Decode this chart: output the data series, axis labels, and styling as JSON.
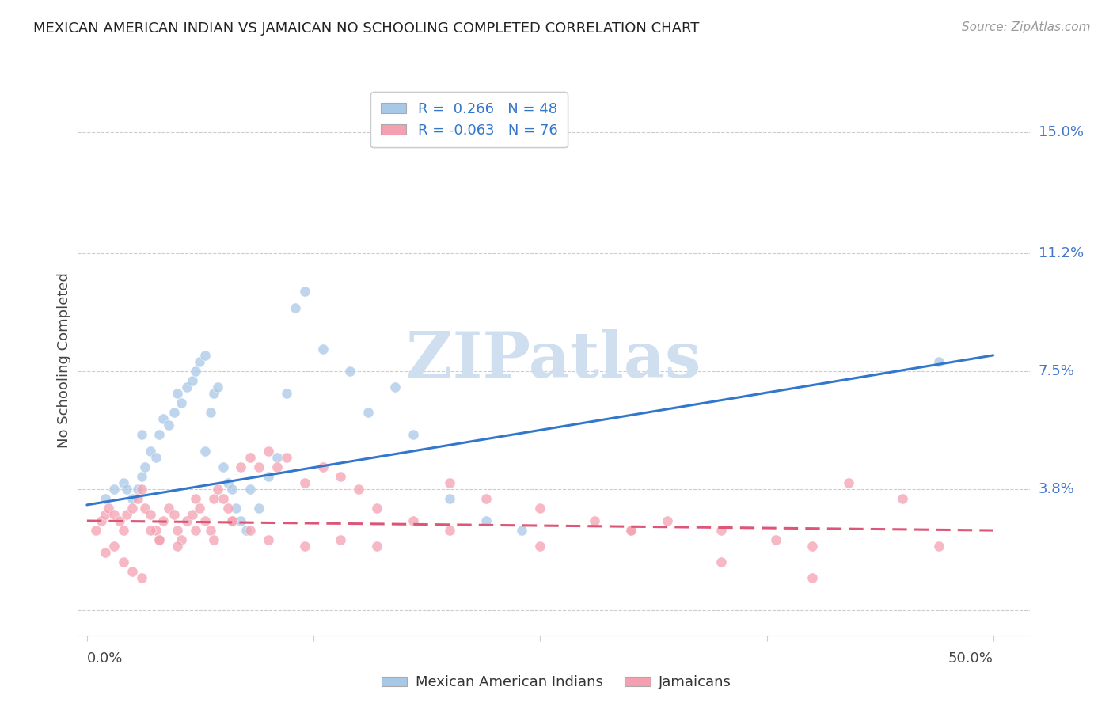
{
  "title": "MEXICAN AMERICAN INDIAN VS JAMAICAN NO SCHOOLING COMPLETED CORRELATION CHART",
  "source": "Source: ZipAtlas.com",
  "ylabel": "No Schooling Completed",
  "ytick_vals": [
    0.0,
    3.8,
    7.5,
    11.2,
    15.0
  ],
  "ytick_labels": [
    "",
    "3.8%",
    "7.5%",
    "11.2%",
    "15.0%"
  ],
  "xlim": [
    -0.5,
    52.0
  ],
  "ylim": [
    -0.8,
    16.5
  ],
  "xtick_vals": [
    0.0,
    12.5,
    25.0,
    37.5,
    50.0
  ],
  "blue_color": "#a8c8e8",
  "pink_color": "#f4a0b0",
  "blue_line_color": "#3377cc",
  "pink_line_color": "#dd5577",
  "watermark_color": "#d0dff0",
  "grid_color": "#cccccc",
  "background_color": "#ffffff",
  "right_label_color": "#4477cc",
  "blue_scatter_x": [
    1.0,
    1.5,
    2.0,
    2.2,
    2.5,
    2.8,
    3.0,
    3.2,
    3.5,
    3.8,
    4.0,
    4.2,
    4.5,
    4.8,
    5.0,
    5.2,
    5.5,
    5.8,
    6.0,
    6.2,
    6.5,
    6.8,
    7.0,
    7.2,
    7.5,
    7.8,
    8.0,
    8.2,
    8.5,
    8.8,
    9.0,
    9.5,
    10.0,
    10.5,
    11.0,
    11.5,
    12.0,
    13.0,
    14.5,
    15.5,
    17.0,
    18.0,
    20.0,
    22.0,
    24.0,
    47.0,
    3.0,
    6.5
  ],
  "blue_scatter_y": [
    3.5,
    3.8,
    4.0,
    3.8,
    3.5,
    3.8,
    4.2,
    4.5,
    5.0,
    4.8,
    5.5,
    6.0,
    5.8,
    6.2,
    6.8,
    6.5,
    7.0,
    7.2,
    7.5,
    7.8,
    8.0,
    6.2,
    6.8,
    7.0,
    4.5,
    4.0,
    3.8,
    3.2,
    2.8,
    2.5,
    3.8,
    3.2,
    4.2,
    4.8,
    6.8,
    9.5,
    10.0,
    8.2,
    7.5,
    6.2,
    7.0,
    5.5,
    3.5,
    2.8,
    2.5,
    7.8,
    5.5,
    5.0
  ],
  "pink_scatter_x": [
    0.5,
    0.8,
    1.0,
    1.2,
    1.5,
    1.8,
    2.0,
    2.2,
    2.5,
    2.8,
    3.0,
    3.2,
    3.5,
    3.8,
    4.0,
    4.2,
    4.5,
    4.8,
    5.0,
    5.2,
    5.5,
    5.8,
    6.0,
    6.2,
    6.5,
    6.8,
    7.0,
    7.2,
    7.5,
    7.8,
    8.0,
    8.5,
    9.0,
    9.5,
    10.0,
    10.5,
    11.0,
    12.0,
    13.0,
    14.0,
    15.0,
    16.0,
    18.0,
    20.0,
    22.0,
    25.0,
    28.0,
    30.0,
    32.0,
    35.0,
    38.0,
    40.0,
    42.0,
    45.0,
    47.0,
    1.0,
    1.5,
    2.0,
    2.5,
    3.0,
    3.5,
    4.0,
    5.0,
    6.0,
    7.0,
    8.0,
    9.0,
    10.0,
    12.0,
    14.0,
    16.0,
    20.0,
    25.0,
    30.0,
    35.0,
    40.0
  ],
  "pink_scatter_y": [
    2.5,
    2.8,
    3.0,
    3.2,
    3.0,
    2.8,
    2.5,
    3.0,
    3.2,
    3.5,
    3.8,
    3.2,
    3.0,
    2.5,
    2.2,
    2.8,
    3.2,
    3.0,
    2.5,
    2.2,
    2.8,
    3.0,
    3.5,
    3.2,
    2.8,
    2.5,
    3.5,
    3.8,
    3.5,
    3.2,
    2.8,
    4.5,
    4.8,
    4.5,
    5.0,
    4.5,
    4.8,
    4.0,
    4.5,
    4.2,
    3.8,
    3.2,
    2.8,
    4.0,
    3.5,
    3.2,
    2.8,
    2.5,
    2.8,
    2.5,
    2.2,
    2.0,
    4.0,
    3.5,
    2.0,
    1.8,
    2.0,
    1.5,
    1.2,
    1.0,
    2.5,
    2.2,
    2.0,
    2.5,
    2.2,
    2.8,
    2.5,
    2.2,
    2.0,
    2.2,
    2.0,
    2.5,
    2.0,
    2.5,
    1.5,
    1.0
  ],
  "blue_trendline_x": [
    0.0,
    50.0
  ],
  "blue_trendline_y": [
    3.3,
    8.0
  ],
  "pink_trendline_x": [
    0.0,
    50.0
  ],
  "pink_trendline_y": [
    2.8,
    2.5
  ]
}
